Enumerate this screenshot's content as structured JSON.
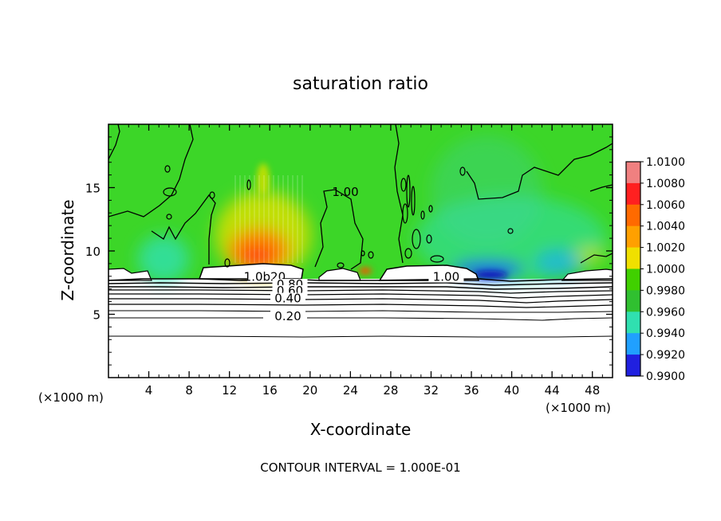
{
  "chart_data": {
    "type": "heatmap",
    "title": "saturation ratio",
    "xlabel": "X-coordinate",
    "ylabel": "Z-coordinate",
    "x_unit_left": "(×1000 m)",
    "x_unit_right": "(×1000 m)",
    "xlim": [
      0,
      50
    ],
    "ylim": [
      0,
      20
    ],
    "xticks": [
      4,
      8,
      12,
      16,
      20,
      24,
      28,
      32,
      36,
      40,
      44,
      48
    ],
    "yticks": [
      5,
      10,
      15
    ],
    "footer": "CONTOUR INTERVAL = 1.000E-01",
    "colorbar": {
      "ticks": [
        "1.0100",
        "1.0080",
        "1.0060",
        "1.0040",
        "1.0020",
        "1.0000",
        "0.9980",
        "0.9960",
        "0.9940",
        "0.9920",
        "0.9900"
      ],
      "colors": [
        "#f08080",
        "#ff2020",
        "#ff6a00",
        "#ffa000",
        "#f0e000",
        "#40d000",
        "#30c030",
        "#30e0b0",
        "#20a0ff",
        "#2020e0",
        "#600090"
      ]
    },
    "contour_labels": [
      {
        "text": "1.00",
        "x": 23.5,
        "z": 14.4
      },
      {
        "text": "1.00",
        "x": 33.5,
        "z": 7.7
      },
      {
        "text": "1.0b20",
        "x": 15.5,
        "z": 7.7
      },
      {
        "text": "0.80",
        "x": 18.0,
        "z": 7.1
      },
      {
        "text": "0.60",
        "x": 18.0,
        "z": 6.6
      },
      {
        "text": "0.40",
        "x": 17.8,
        "z": 6.0
      },
      {
        "text": "0.20",
        "x": 17.8,
        "z": 4.6
      }
    ],
    "field_regions": [
      {
        "x": 14.5,
        "z": 10.0,
        "value": 1.006
      },
      {
        "x": 15.8,
        "z": 12.5,
        "value": 1.003
      },
      {
        "x": 6.0,
        "z": 9.0,
        "value": 0.997
      },
      {
        "x": 38.0,
        "z": 8.0,
        "value": 0.993
      },
      {
        "x": 45.0,
        "z": 8.2,
        "value": 0.9965
      },
      {
        "x": 30.0,
        "z": 15.0,
        "value": 0.998
      },
      {
        "x": 25.5,
        "z": 8.2,
        "value": 1.005
      }
    ]
  }
}
